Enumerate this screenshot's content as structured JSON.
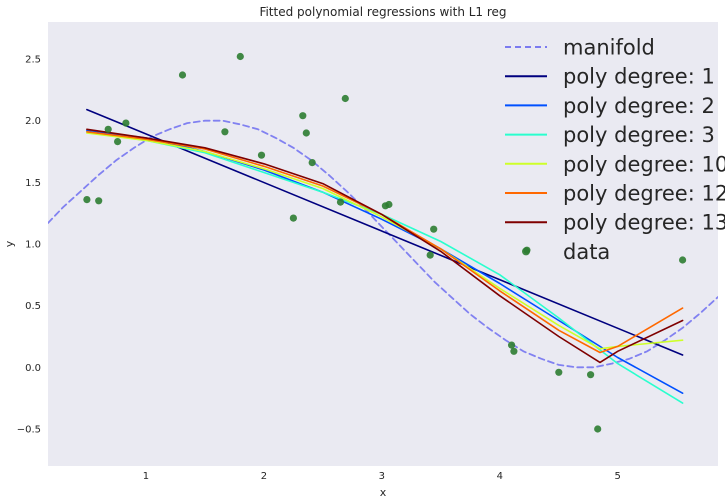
{
  "chart_data": {
    "type": "line",
    "title": "Fitted polynomial regressions with L1 reg",
    "xlabel": "x",
    "ylabel": "y",
    "xlim": [
      0.17,
      5.85
    ],
    "ylim": [
      -0.8,
      2.8
    ],
    "xticks": [
      1,
      2,
      3,
      4,
      5
    ],
    "yticks": [
      -0.5,
      0.0,
      0.5,
      1.0,
      1.5,
      2.0,
      2.5
    ],
    "xtick_labels": [
      "1",
      "2",
      "3",
      "4",
      "5"
    ],
    "ytick_labels": [
      "−0.5",
      "0.0",
      "0.5",
      "1.0",
      "1.5",
      "2.0",
      "2.5"
    ],
    "grid": false,
    "legend_position": "top-right",
    "background": "#EAEAF2",
    "series": [
      {
        "name": "manifold",
        "style": "dashed",
        "color": "#7B7BF0",
        "x": [
          0.17,
          0.3,
          0.45,
          0.6,
          0.75,
          0.9,
          1.05,
          1.2,
          1.35,
          1.5,
          1.65,
          1.8,
          1.95,
          2.1,
          2.25,
          2.4,
          2.55,
          2.7,
          2.85,
          3.0,
          3.15,
          3.3,
          3.45,
          3.6,
          3.75,
          3.9,
          4.05,
          4.2,
          4.35,
          4.5,
          4.65,
          4.8,
          4.95,
          5.1,
          5.25,
          5.4,
          5.55,
          5.7,
          5.85
        ],
        "y": [
          1.17,
          1.3,
          1.43,
          1.56,
          1.68,
          1.78,
          1.87,
          1.93,
          1.98,
          2.0,
          2.0,
          1.97,
          1.93,
          1.86,
          1.78,
          1.68,
          1.56,
          1.43,
          1.29,
          1.14,
          0.99,
          0.84,
          0.69,
          0.56,
          0.43,
          0.32,
          0.22,
          0.13,
          0.07,
          0.02,
          0.0,
          0.0,
          0.03,
          0.07,
          0.13,
          0.22,
          0.32,
          0.44,
          0.57
        ]
      },
      {
        "name": "poly degree: 1",
        "color": "#00007F",
        "x": [
          0.5,
          5.55
        ],
        "y": [
          2.09,
          0.1
        ]
      },
      {
        "name": "poly degree: 2",
        "color": "#0050FF",
        "x": [
          0.5,
          1.0,
          1.5,
          2.0,
          2.5,
          3.0,
          3.5,
          4.0,
          4.5,
          5.0,
          5.55
        ],
        "y": [
          1.92,
          1.86,
          1.75,
          1.6,
          1.42,
          1.2,
          0.96,
          0.68,
          0.38,
          0.08,
          -0.21
        ]
      },
      {
        "name": "poly degree: 3",
        "color": "#29FFCE",
        "x": [
          0.5,
          1.0,
          1.5,
          2.0,
          2.5,
          3.0,
          3.5,
          4.0,
          4.5,
          5.0,
          5.55
        ],
        "y": [
          1.91,
          1.84,
          1.74,
          1.58,
          1.42,
          1.24,
          1.02,
          0.75,
          0.4,
          0.03,
          -0.29
        ]
      },
      {
        "name": "poly degree: 10",
        "color": "#CEFF29",
        "x": [
          0.5,
          1.0,
          1.5,
          2.0,
          2.5,
          3.0,
          3.5,
          4.0,
          4.5,
          4.85,
          5.0,
          5.55
        ],
        "y": [
          1.9,
          1.84,
          1.75,
          1.61,
          1.45,
          1.22,
          0.96,
          0.64,
          0.34,
          0.15,
          0.17,
          0.22
        ]
      },
      {
        "name": "poly degree: 12",
        "color": "#FF6800",
        "x": [
          0.5,
          1.0,
          1.5,
          2.0,
          2.5,
          3.0,
          3.5,
          4.0,
          4.5,
          4.85,
          5.0,
          5.55
        ],
        "y": [
          1.91,
          1.85,
          1.77,
          1.63,
          1.47,
          1.24,
          0.96,
          0.62,
          0.3,
          0.12,
          0.17,
          0.48
        ]
      },
      {
        "name": "poly degree: 13",
        "color": "#7F0000",
        "x": [
          0.5,
          1.0,
          1.5,
          2.0,
          2.5,
          3.0,
          3.5,
          4.0,
          4.5,
          4.85,
          5.0,
          5.55
        ],
        "y": [
          1.93,
          1.86,
          1.78,
          1.65,
          1.49,
          1.24,
          0.94,
          0.58,
          0.25,
          0.04,
          0.13,
          0.38
        ]
      }
    ],
    "scatter": {
      "name": "data",
      "color": "#2E7D32",
      "x": [
        0.5,
        0.6,
        0.68,
        0.76,
        0.83,
        1.31,
        1.67,
        1.8,
        1.98,
        2.25,
        2.33,
        2.36,
        2.41,
        2.65,
        2.69,
        3.03,
        3.06,
        3.41,
        3.44,
        4.1,
        4.12,
        4.23,
        4.5,
        4.77,
        4.83,
        5.55
      ],
      "y": [
        1.36,
        1.35,
        1.93,
        1.83,
        1.98,
        2.37,
        1.91,
        2.52,
        1.72,
        1.21,
        2.04,
        1.9,
        1.66,
        1.34,
        2.18,
        1.31,
        1.32,
        0.91,
        1.12,
        0.18,
        0.13,
        0.95,
        -0.04,
        -0.06,
        -0.5,
        0.87
      ]
    }
  }
}
